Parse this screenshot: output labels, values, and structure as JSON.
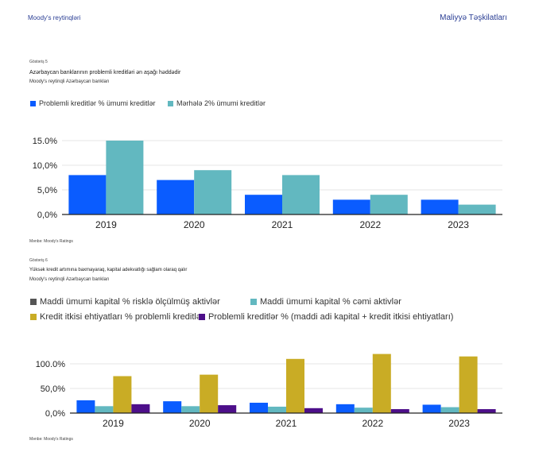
{
  "header": {
    "left": "Moody's reytinqləri",
    "right": "Maliyyə Təşkilatları"
  },
  "exhibit5": {
    "number": "Göstəriş 5",
    "title": "Azərbaycan banklarının problemli kreditləri ən aşağı həddədir",
    "subtitle": "Moody's reytinqli Azərbaycan bankları",
    "source": "Mənbə: Moody's Ratings"
  },
  "exhibit6": {
    "number": "Göstəriş 6",
    "title": "Yüksək kredit artımına baxmayaraq, kapital adekvatlığı sağlam olaraq qalır",
    "subtitle": "Moody's reytinqli Azərbaycan bankları",
    "source": "Mənbə: Moody's Ratings"
  },
  "chart_data": [
    {
      "type": "bar",
      "categories": [
        "2019",
        "2020",
        "2021",
        "2022",
        "2023"
      ],
      "series": [
        {
          "name": "Problemli kreditlər % ümumi kreditlər",
          "color": "#0a5cff",
          "values": [
            8.0,
            7.0,
            4.0,
            3.0,
            3.0
          ]
        },
        {
          "name": "Mərhələ 2% ümumi kreditlər",
          "color": "#62b8c0",
          "values": [
            15.0,
            9.0,
            8.0,
            4.0,
            2.0
          ]
        }
      ],
      "yticks": [
        "0,0%",
        "5,0%",
        "10,0%",
        "15.0%"
      ],
      "ylim": [
        0,
        15
      ],
      "grid": true,
      "legend": "top-left"
    },
    {
      "type": "bar",
      "categories": [
        "2019",
        "2020",
        "2021",
        "2022",
        "2023"
      ],
      "series": [
        {
          "name": "Maddi ümumi kapital % risklə ölçülmüş aktivlər",
          "color": "#0a5cff",
          "legend_color": "#555555",
          "values": [
            26,
            24,
            21,
            18,
            17
          ]
        },
        {
          "name": "Maddi ümumi kapital % cəmi aktivlər",
          "color": "#62b8c0",
          "values": [
            14,
            14,
            13,
            11,
            12
          ]
        },
        {
          "name": "Kredit itkisi ehtiyatları % problemli kreditlər",
          "color": "#c9ac25",
          "values": [
            75,
            78,
            110,
            120,
            115
          ]
        },
        {
          "name": "Problemli kreditlər % (maddi adi kapital + kredit itkisi ehtiyatları)",
          "color": "#4d0f8a",
          "values": [
            18,
            16,
            10,
            8,
            8
          ]
        }
      ],
      "yticks": [
        "0,0%",
        "50,0%",
        "100.0%"
      ],
      "ylim": [
        0,
        100
      ],
      "grid": true,
      "legend": "top-left"
    }
  ]
}
